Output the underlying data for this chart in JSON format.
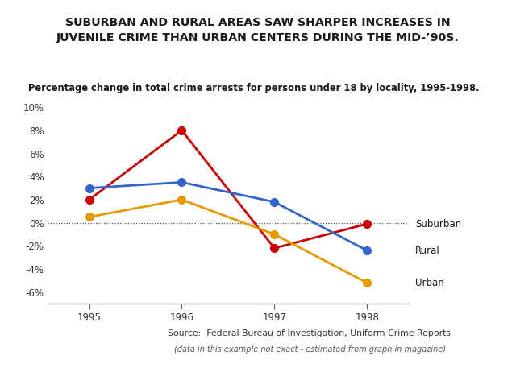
{
  "title_line1": "SUBURBAN AND RURAL AREAS SAW SHARPER INCREASES IN",
  "title_line2": "JUVENILE CRIME THAN URBAN CENTERS DURING THE MID-’90S.",
  "subtitle": "Percentage change in total crime arrests for persons under 18 by locality, 1995-1998.",
  "source_line1": "Source:  Federal Bureau of Investigation, Uniform Crime Reports",
  "source_line2": "(data in this example not exact - estimated from graph in magazine)",
  "years": [
    1995,
    1996,
    1997,
    1998
  ],
  "suburban": [
    2.0,
    8.0,
    -2.2,
    -0.1
  ],
  "rural": [
    3.0,
    3.5,
    1.8,
    -2.4
  ],
  "urban": [
    0.5,
    2.0,
    -1.0,
    -5.2
  ],
  "suburban_color": "#cc0000",
  "rural_color": "#3366cc",
  "urban_color": "#e69900",
  "ylim": [
    -7,
    11
  ],
  "yticks": [
    -6,
    -4,
    -2,
    0,
    2,
    4,
    6,
    8,
    10
  ],
  "background_title": "#dcdcdc",
  "background_plot": "#ffffff",
  "marker_size": 7,
  "line_width": 2.0
}
